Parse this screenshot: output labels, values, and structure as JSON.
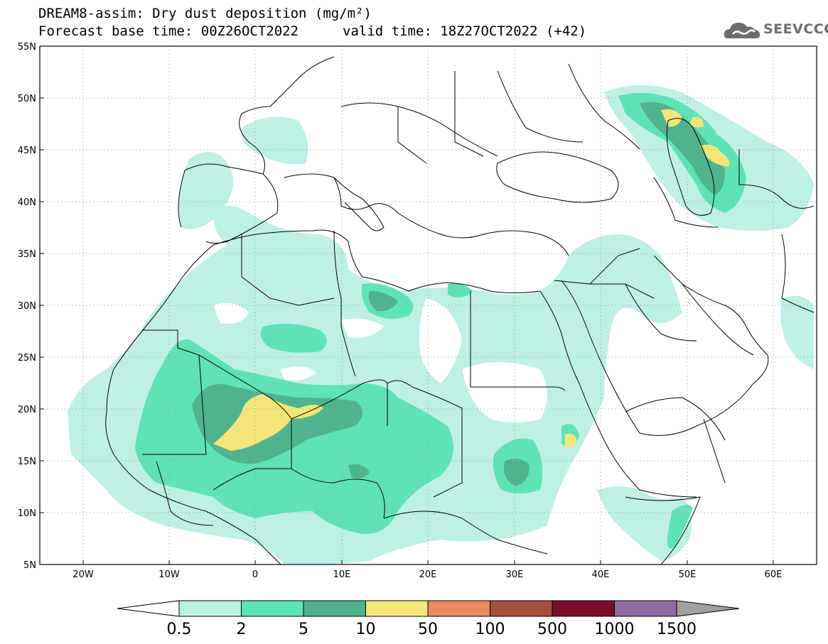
{
  "title": {
    "line1": "DREAM8-assim: Dry dust deposition (mg/m²)",
    "base": "Forecast base time: 00Z26OCT2022",
    "valid": "valid time: 18Z27OCT2022 (+42)"
  },
  "logo": {
    "icon": "cloud-icon",
    "text": "SEEVCCC"
  },
  "map": {
    "lat_labels": [
      "55N",
      "50N",
      "45N",
      "40N",
      "35N",
      "30N",
      "25N",
      "20N",
      "15N",
      "10N",
      "5N"
    ],
    "lon_labels": [
      "20W",
      "10W",
      "0",
      "10E",
      "20E",
      "30E",
      "40E",
      "50E",
      "60E"
    ],
    "lat_range": [
      5,
      55
    ],
    "lon_range": [
      -25,
      65
    ],
    "grid": "dotted"
  },
  "colorbar": {
    "levels": [
      "0.5",
      "2",
      "5",
      "10",
      "50",
      "100",
      "500",
      "1000",
      "1500"
    ],
    "colors": [
      "#bff0e6",
      "#5fe3b6",
      "#4fb48e",
      "#f4e67a",
      "#e98a63",
      "#a94d3e",
      "#7a0d2a",
      "#8e6ba3",
      "#a0a0a0"
    ]
  }
}
